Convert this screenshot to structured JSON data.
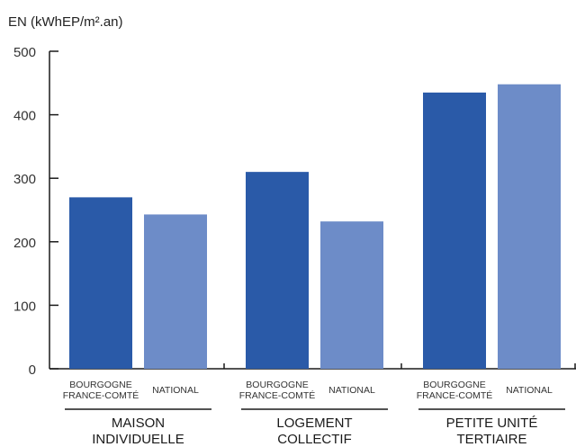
{
  "chart_data": {
    "type": "bar",
    "ylabel": "EN (kWhEP/m².an)",
    "ylim": [
      0,
      500
    ],
    "yticks": [
      0,
      100,
      200,
      300,
      400,
      500
    ],
    "groups": [
      "MAISON INDIVIDUELLE",
      "LOGEMENT COLLECTIF",
      "PETITE UNITÉ TERTIAIRE"
    ],
    "group_lines": [
      [
        "MAISON",
        "INDIVIDUELLE"
      ],
      [
        "LOGEMENT",
        "COLLECTIF"
      ],
      [
        "PETITE UNITÉ",
        "TERTIAIRE"
      ]
    ],
    "series": [
      {
        "name": "BOURGOGNE FRANCE-COMTÉ",
        "name_lines": [
          "BOURGOGNE",
          "FRANCE-COMTÉ"
        ],
        "color": "#2a5aa8",
        "values": [
          270,
          310,
          435
        ]
      },
      {
        "name": "NATIONAL",
        "name_lines": [
          "NATIONAL"
        ],
        "color": "#6d8cc8",
        "values": [
          243,
          232,
          448
        ]
      }
    ],
    "grid": false,
    "legend": "none"
  }
}
